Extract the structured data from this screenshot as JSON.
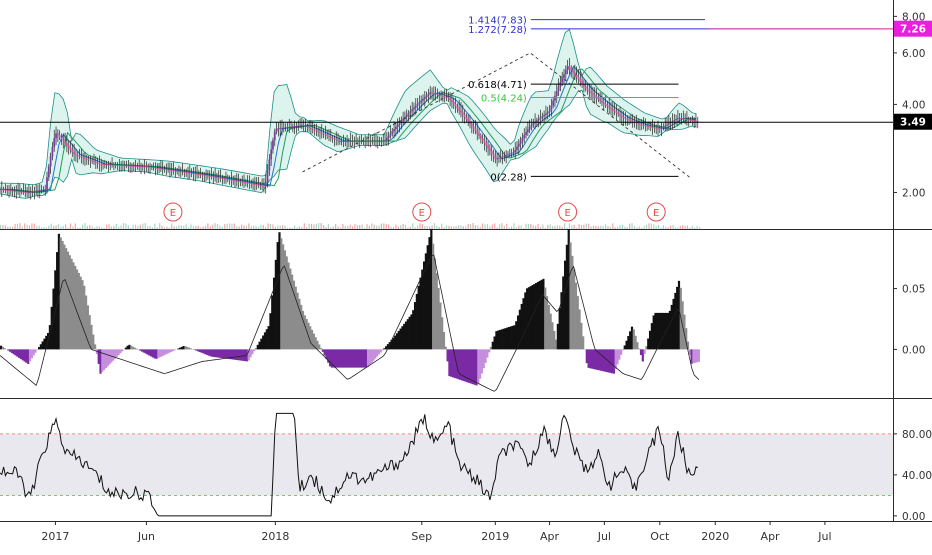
{
  "chart_data": [
    {
      "type": "candlestick",
      "panel": "price",
      "title": "",
      "y_axis": {
        "scale": "log",
        "ticks": [
          "8.00",
          "6.00",
          "4.00",
          "2.00"
        ],
        "range": [
          1.5,
          9.1
        ]
      },
      "price_tags": [
        {
          "label": "7.26",
          "value": 7.26,
          "color": "#e91ee0"
        },
        {
          "label": "3.49",
          "value": 3.49,
          "color": "#000000"
        }
      ],
      "horizontal_lines": [
        {
          "label": "1.414(7.83)",
          "value": 7.83,
          "color": "#2f2fd6",
          "x_start": "2019-03-01",
          "x_end": "2019-12-15"
        },
        {
          "label": "1.272(7.28)",
          "value": 7.28,
          "color": "#2f2fd6",
          "x_start": "2019-03-01",
          "x_end": "2020-09-30"
        },
        {
          "label": "0.618(4.71)",
          "value": 4.71,
          "color": "#000000",
          "x_start": "2019-03-01",
          "x_end": "2019-11-01"
        },
        {
          "label": "0.5(4.24)",
          "value": 4.24,
          "color": "#2ecc40",
          "x_start": "2019-03-01",
          "x_end": "2019-11-01"
        },
        {
          "label": "0(2.28)",
          "value": 2.28,
          "color": "#000000",
          "x_start": "2019-03-01",
          "x_end": "2019-11-01"
        },
        {
          "label": "",
          "value": 3.49,
          "color": "#000000",
          "x_start": "2016-10-01",
          "x_end": "2020-10-31"
        }
      ],
      "trend_lines": [
        {
          "points": [
            [
              "2018-02-15",
              2.35
            ],
            [
              "2019-02-28",
              6.0
            ],
            [
              "2019-11-20",
              2.25
            ]
          ],
          "style": "dashed"
        }
      ],
      "earnings_markers": [
        {
          "label": "E",
          "date": "2017-07-15"
        },
        {
          "label": "E",
          "date": "2018-09-01"
        },
        {
          "label": "E",
          "date": "2019-05-01"
        },
        {
          "label": "E",
          "date": "2019-09-25"
        }
      ],
      "series": [
        {
          "kind": "close",
          "points": [
            [
              "2016-10-01",
              2.05
            ],
            [
              "2016-11-15",
              2.0
            ],
            [
              "2016-12-15",
              2.05
            ],
            [
              "2017-01-01",
              3.2
            ],
            [
              "2017-02-01",
              2.7
            ],
            [
              "2017-03-15",
              2.5
            ],
            [
              "2017-06-01",
              2.45
            ],
            [
              "2017-09-01",
              2.3
            ],
            [
              "2017-12-15",
              2.1
            ],
            [
              "2018-01-01",
              3.3
            ],
            [
              "2018-02-15",
              3.4
            ],
            [
              "2018-04-15",
              3.0
            ],
            [
              "2018-07-01",
              3.0
            ],
            [
              "2018-09-15",
              4.4
            ],
            [
              "2018-10-15",
              4.2
            ],
            [
              "2018-12-01",
              3.2
            ],
            [
              "2019-01-01",
              2.6
            ],
            [
              "2019-02-01",
              2.75
            ],
            [
              "2019-03-01",
              3.4
            ],
            [
              "2019-04-01",
              3.8
            ],
            [
              "2019-05-01",
              5.4
            ],
            [
              "2019-06-01",
              4.5
            ],
            [
              "2019-07-01",
              4.0
            ],
            [
              "2019-08-01",
              3.6
            ],
            [
              "2019-09-01",
              3.4
            ],
            [
              "2019-10-01",
              3.3
            ],
            [
              "2019-11-01",
              3.6
            ],
            [
              "2019-12-05",
              3.49
            ]
          ]
        }
      ]
    },
    {
      "type": "histogram",
      "panel": "oscillator",
      "y_axis": {
        "ticks": [
          "0.05",
          "0.00"
        ],
        "range": [
          -0.04,
          0.099
        ]
      },
      "series": [
        {
          "kind": "histogram",
          "points": [
            [
              "2016-10-01",
              0.003
            ],
            [
              "2016-11-15",
              -0.012
            ],
            [
              "2016-12-20",
              0.015
            ],
            [
              "2017-01-05",
              0.095
            ],
            [
              "2017-02-15",
              0.055
            ],
            [
              "2017-03-15",
              -0.02
            ],
            [
              "2017-05-01",
              0.004
            ],
            [
              "2017-06-15",
              -0.008
            ],
            [
              "2017-08-01",
              0.003
            ],
            [
              "2017-09-15",
              -0.006
            ],
            [
              "2017-11-15",
              -0.01
            ],
            [
              "2017-12-20",
              0.02
            ],
            [
              "2018-01-05",
              0.098
            ],
            [
              "2018-02-15",
              0.03
            ],
            [
              "2018-04-01",
              -0.015
            ],
            [
              "2018-06-01",
              -0.015
            ],
            [
              "2018-07-15",
              0.01
            ],
            [
              "2018-08-15",
              0.03
            ],
            [
              "2018-09-15",
              0.099
            ],
            [
              "2018-10-15",
              -0.022
            ],
            [
              "2018-12-01",
              -0.03
            ],
            [
              "2019-01-01",
              0.015
            ],
            [
              "2019-02-01",
              0.02
            ],
            [
              "2019-02-20",
              0.05
            ],
            [
              "2019-03-20",
              0.058
            ],
            [
              "2019-04-10",
              0.008
            ],
            [
              "2019-05-01",
              0.099
            ],
            [
              "2019-06-01",
              -0.015
            ],
            [
              "2019-07-15",
              -0.02
            ],
            [
              "2019-08-15",
              0.02
            ],
            [
              "2019-09-01",
              -0.01
            ],
            [
              "2019-09-20",
              0.03
            ],
            [
              "2019-10-15",
              0.03
            ],
            [
              "2019-11-01",
              0.058
            ],
            [
              "2019-11-20",
              -0.012
            ],
            [
              "2019-12-05",
              -0.01
            ]
          ]
        },
        {
          "kind": "signal",
          "points": [
            [
              "2016-10-01",
              -0.005
            ],
            [
              "2016-12-01",
              -0.03
            ],
            [
              "2017-01-15",
              0.06
            ],
            [
              "2017-03-01",
              0.0
            ],
            [
              "2017-05-01",
              -0.01
            ],
            [
              "2017-07-01",
              -0.02
            ],
            [
              "2017-09-01",
              -0.01
            ],
            [
              "2017-11-15",
              -0.005
            ],
            [
              "2018-01-15",
              0.07
            ],
            [
              "2018-03-01",
              0.005
            ],
            [
              "2018-05-01",
              -0.025
            ],
            [
              "2018-07-01",
              -0.005
            ],
            [
              "2018-09-20",
              0.08
            ],
            [
              "2018-11-01",
              -0.02
            ],
            [
              "2019-01-01",
              -0.035
            ],
            [
              "2019-02-15",
              0.01
            ],
            [
              "2019-03-20",
              0.045
            ],
            [
              "2019-04-15",
              0.03
            ],
            [
              "2019-05-10",
              0.07
            ],
            [
              "2019-06-15",
              0.0
            ],
            [
              "2019-08-01",
              -0.02
            ],
            [
              "2019-09-01",
              -0.025
            ],
            [
              "2019-10-01",
              0.005
            ],
            [
              "2019-11-01",
              0.035
            ],
            [
              "2019-11-25",
              -0.02
            ],
            [
              "2019-12-05",
              -0.025
            ]
          ]
        }
      ]
    },
    {
      "type": "line",
      "panel": "rsi",
      "y_axis": {
        "ticks": [
          "80.00",
          "40.00",
          "0.00"
        ],
        "range": [
          -5,
          115
        ]
      },
      "band": {
        "upper": 80,
        "lower": 20
      },
      "series": [
        {
          "kind": "rsi",
          "points": [
            [
              "2016-10-01",
              45
            ],
            [
              "2016-11-01",
              40
            ],
            [
              "2016-11-20",
              15
            ],
            [
              "2016-12-10",
              60
            ],
            [
              "2017-01-01",
              92
            ],
            [
              "2017-01-20",
              60
            ],
            [
              "2017-02-10",
              55
            ],
            [
              "2017-03-10",
              40
            ],
            [
              "2017-04-01",
              22
            ],
            [
              "2017-06-01",
              22
            ],
            [
              "2017-06-20",
              0
            ],
            [
              "2017-12-25",
              0
            ],
            [
              "2018-01-01",
              100
            ],
            [
              "2018-02-01",
              100
            ],
            [
              "2018-02-10",
              25
            ],
            [
              "2018-03-01",
              40
            ],
            [
              "2018-04-01",
              15
            ],
            [
              "2018-05-01",
              40
            ],
            [
              "2018-06-01",
              35
            ],
            [
              "2018-07-01",
              45
            ],
            [
              "2018-08-01",
              55
            ],
            [
              "2018-09-05",
              95
            ],
            [
              "2018-09-25",
              70
            ],
            [
              "2018-10-15",
              90
            ],
            [
              "2018-11-01",
              50
            ],
            [
              "2018-12-01",
              35
            ],
            [
              "2018-12-25",
              15
            ],
            [
              "2019-01-05",
              55
            ],
            [
              "2019-02-01",
              70
            ],
            [
              "2019-03-01",
              50
            ],
            [
              "2019-03-20",
              85
            ],
            [
              "2019-04-10",
              60
            ],
            [
              "2019-04-25",
              98
            ],
            [
              "2019-05-15",
              60
            ],
            [
              "2019-06-01",
              45
            ],
            [
              "2019-06-20",
              60
            ],
            [
              "2019-07-10",
              30
            ],
            [
              "2019-08-01",
              45
            ],
            [
              "2019-08-20",
              25
            ],
            [
              "2019-09-10",
              60
            ],
            [
              "2019-10-01",
              85
            ],
            [
              "2019-10-15",
              35
            ],
            [
              "2019-11-01",
              80
            ],
            [
              "2019-11-15",
              45
            ],
            [
              "2019-11-25",
              40
            ],
            [
              "2019-12-05",
              55
            ]
          ]
        }
      ]
    }
  ],
  "x_axis": {
    "ticks": [
      {
        "label": "2017",
        "date": "2017-01-01"
      },
      {
        "label": "Jun",
        "date": "2017-06-01"
      },
      {
        "label": "2018",
        "date": "2018-01-01"
      },
      {
        "label": "Sep",
        "date": "2018-09-01"
      },
      {
        "label": "2019",
        "date": "2019-01-01"
      },
      {
        "label": "Apr",
        "date": "2019-04-01"
      },
      {
        "label": "Jul",
        "date": "2019-07-01"
      },
      {
        "label": "Oct",
        "date": "2019-10-01"
      },
      {
        "label": "2020",
        "date": "2020-01-01"
      },
      {
        "label": "Apr",
        "date": "2020-04-01"
      },
      {
        "label": "Jul",
        "date": "2020-07-01"
      }
    ]
  },
  "colors": {
    "candle_up": "#7b3fa0",
    "candle_down": "#d84aa8",
    "bands_fill": "#cdeee7",
    "bands_line": "#1a8f86",
    "hist_up": "#111111",
    "hist_up_light": "#8c8c8c",
    "hist_down": "#7b2aa6",
    "hist_down_light": "#c58fdc",
    "rsi_band": "#e8e8ee",
    "rsi_upper_line": "#e06b6b",
    "rsi_lower_line": "#4cb14c",
    "earnings": "#e44b4b"
  }
}
